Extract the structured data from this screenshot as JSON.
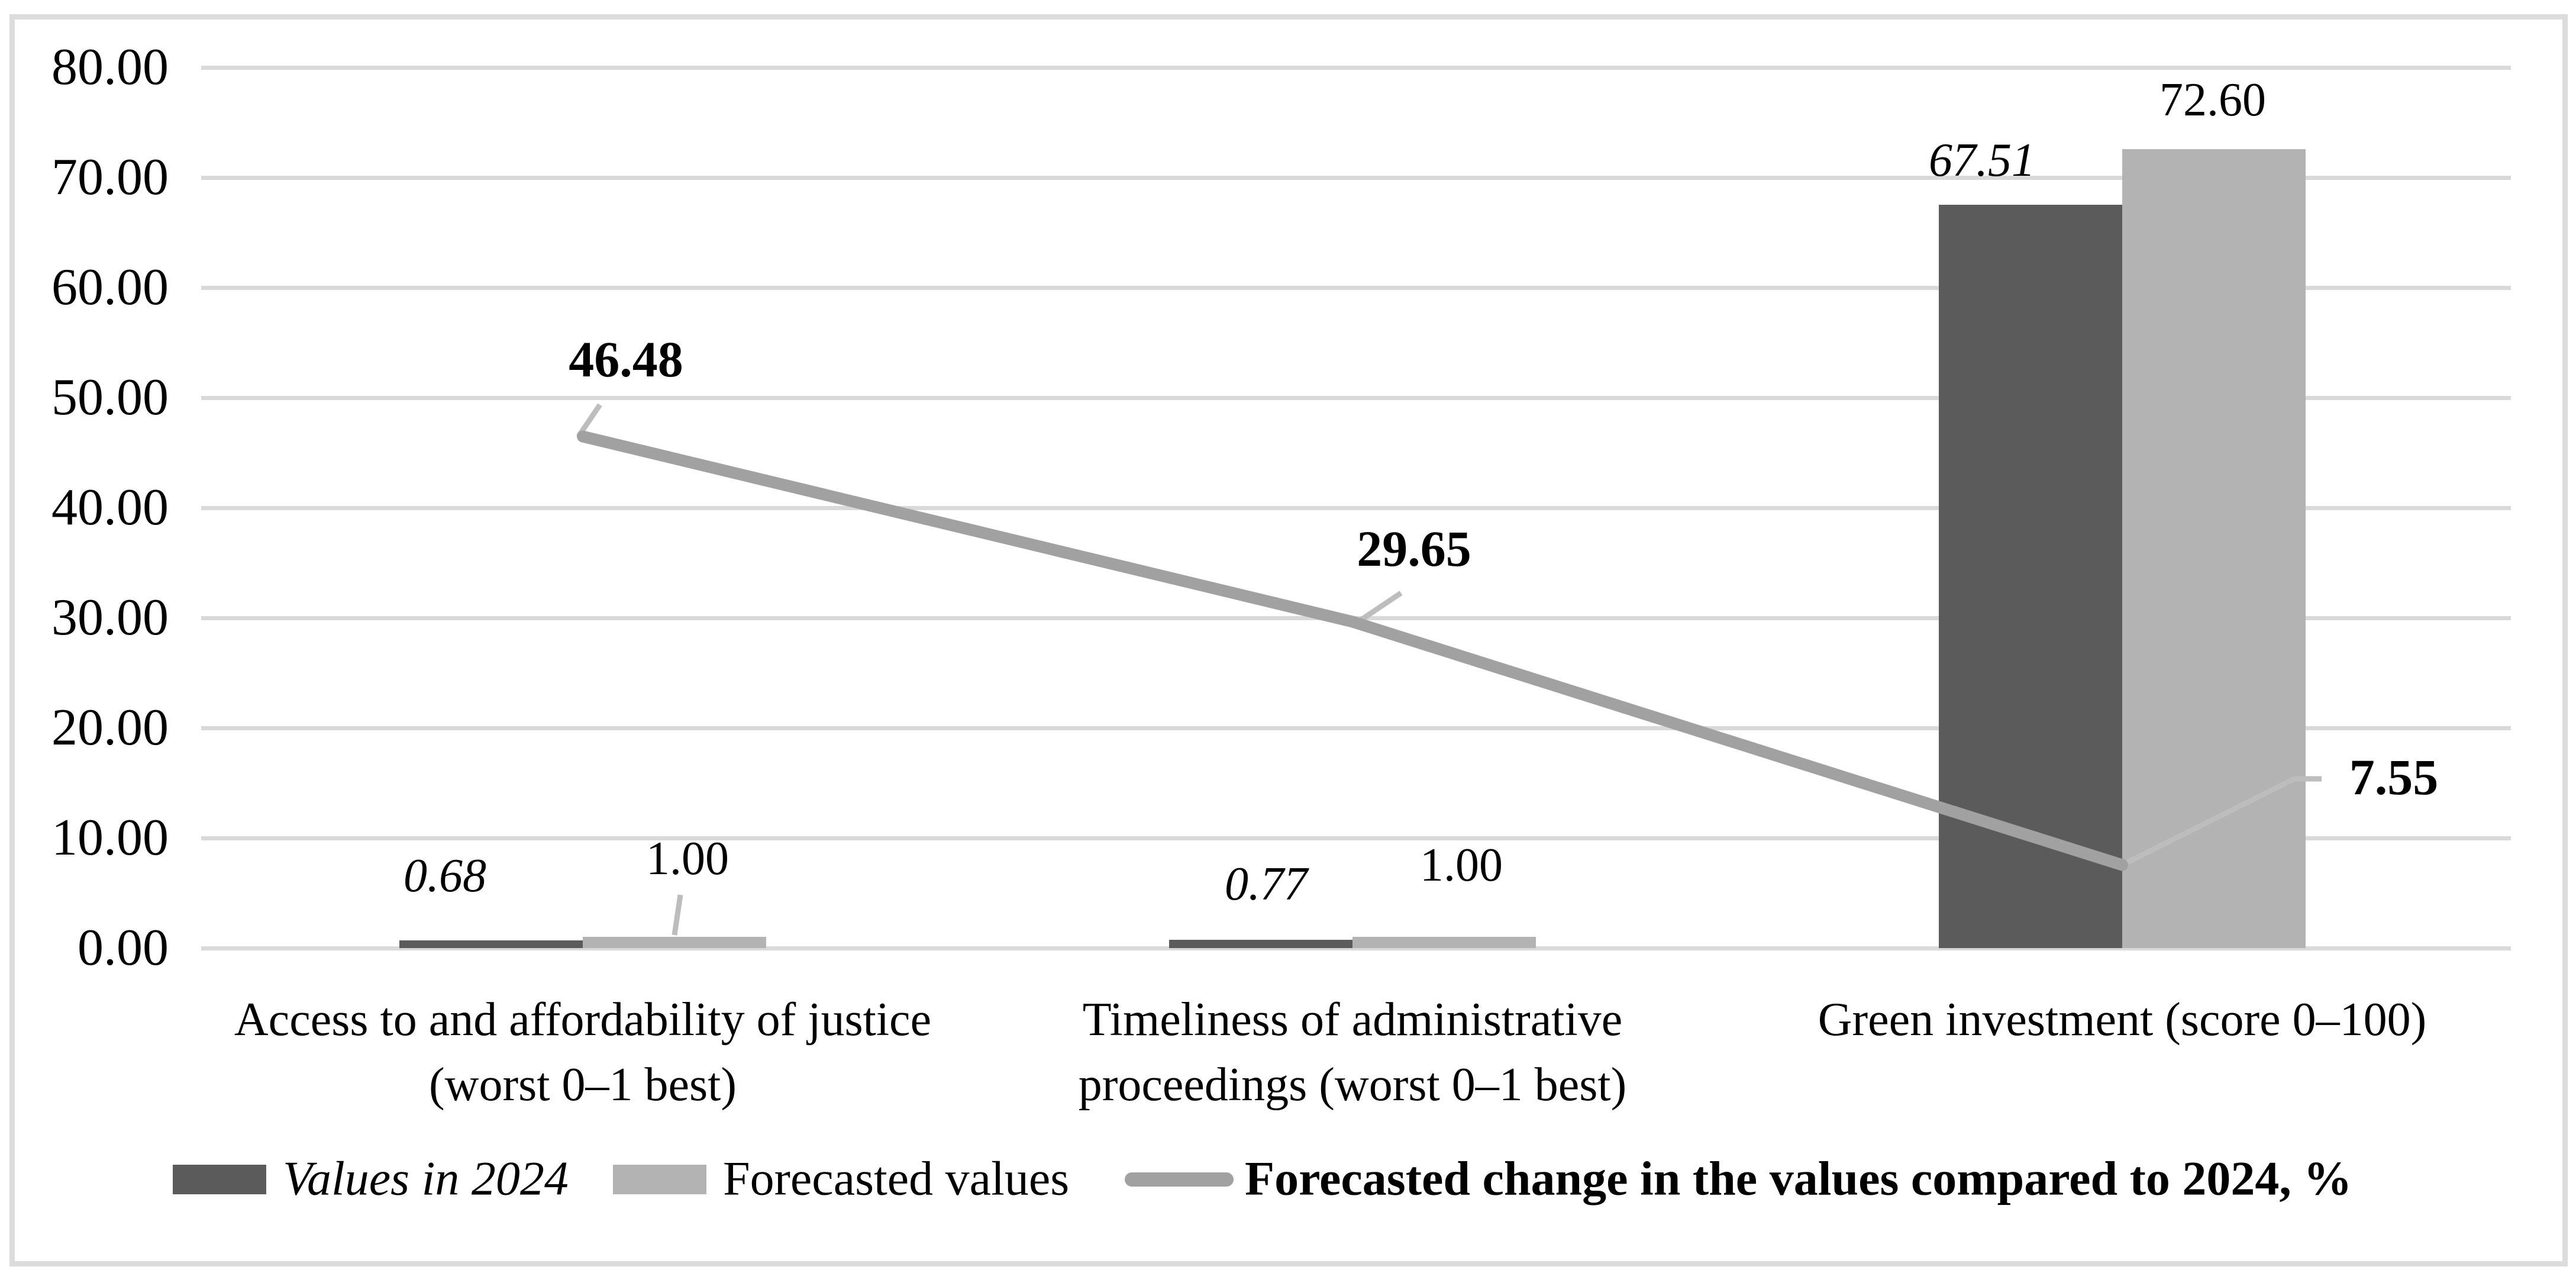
{
  "chart_data": {
    "type": "combo",
    "title": "",
    "categories": [
      "Access to and affordability of justice (worst 0–1 best)",
      "Timeliness of administrative proceedings (worst 0–1 best)",
      "Green investment (score 0–100)"
    ],
    "categories_lines": [
      [
        "Access to and affordability of justice",
        "(worst 0–1 best)"
      ],
      [
        "Timeliness of administrative",
        "proceedings (worst 0–1 best)"
      ],
      [
        "Green investment (score 0–100)"
      ]
    ],
    "series": [
      {
        "name": "Values in 2024",
        "type": "bar",
        "values": [
          0.68,
          0.77,
          67.51
        ],
        "labels": [
          "0.68",
          "0.77",
          "67.51"
        ],
        "color": "#5b5b5b",
        "label_style": "italic"
      },
      {
        "name": "Forecasted values",
        "type": "bar",
        "values": [
          1.0,
          1.0,
          72.6
        ],
        "labels": [
          "1.00",
          "1.00",
          "72.60"
        ],
        "color": "#b3b3b3",
        "label_style": "normal"
      },
      {
        "name": "Forecasted change in the values compared to 2024, %",
        "type": "line",
        "values": [
          46.48,
          29.65,
          7.55
        ],
        "labels": [
          "46.48",
          "29.65",
          "7.55"
        ],
        "color": "#a1a1a1",
        "label_style": "bold"
      }
    ],
    "y_axis": {
      "min": 0,
      "max": 80,
      "step": 10,
      "tick_labels": [
        "0.00",
        "10.00",
        "20.00",
        "30.00",
        "40.00",
        "50.00",
        "60.00",
        "70.00",
        "80.00"
      ]
    },
    "grid": true,
    "legend_position": "bottom",
    "colors": {
      "gridline": "#d9d9d9",
      "chart_border": "#dcdcdc",
      "leader_line": "#bdbdbd",
      "background": "#ffffff",
      "text": "#000000"
    }
  }
}
